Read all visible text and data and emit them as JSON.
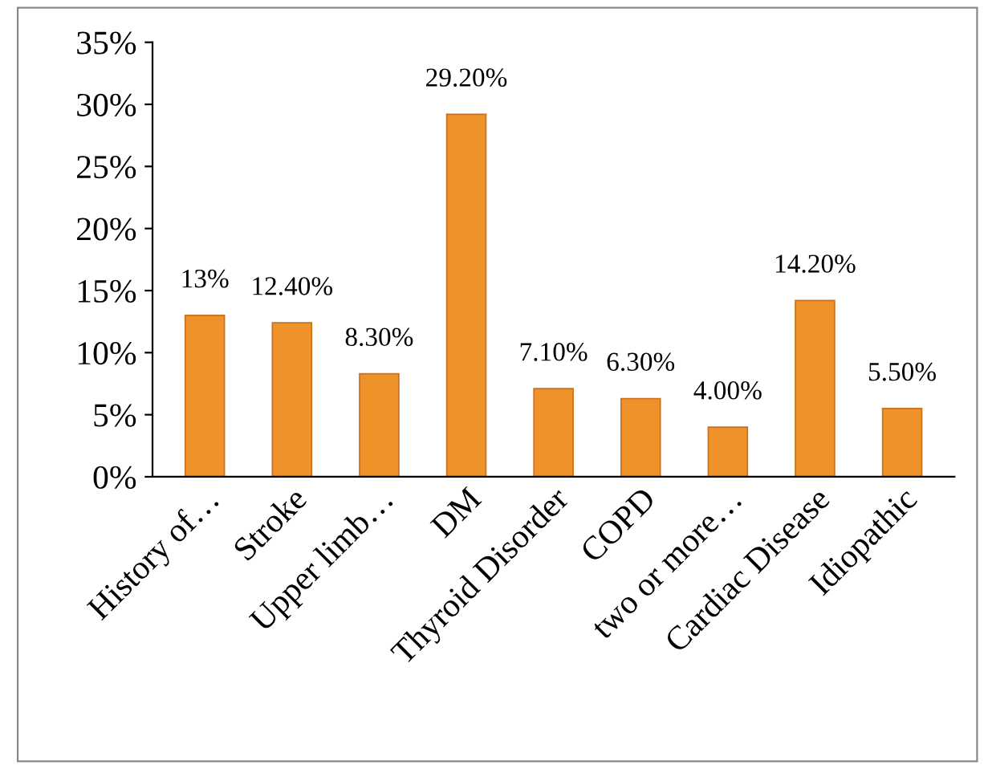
{
  "chart_data": {
    "type": "bar",
    "categories": [
      "History of…",
      "Stroke",
      "Upper limb…",
      "DM",
      "Thyroid Disorder",
      "COPD",
      "two or more…",
      "Cardiac Disease",
      "Idiopathic"
    ],
    "values": [
      13,
      12.4,
      8.3,
      29.2,
      7.1,
      6.3,
      4.0,
      14.2,
      5.5
    ],
    "value_labels": [
      "13%",
      "12.40%",
      "8.30%",
      "29.20%",
      "7.10%",
      "6.30%",
      "4.00%",
      "14.20%",
      "5.50%"
    ],
    "color": "#f0922a",
    "ylim": [
      0,
      35
    ],
    "yticks": [
      {
        "value": 0,
        "label": "0%"
      },
      {
        "value": 5,
        "label": "5%"
      },
      {
        "value": 10,
        "label": "10%"
      },
      {
        "value": 15,
        "label": "15%"
      },
      {
        "value": 20,
        "label": "20%"
      },
      {
        "value": 25,
        "label": "25%"
      },
      {
        "value": 30,
        "label": "30%"
      },
      {
        "value": 35,
        "label": "35%"
      }
    ],
    "grid": false,
    "legend": false
  }
}
